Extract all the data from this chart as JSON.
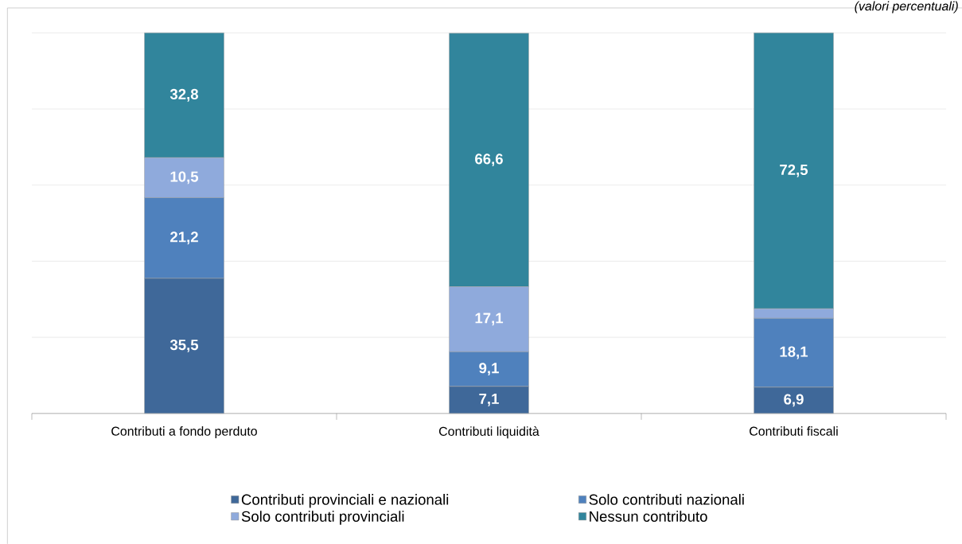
{
  "chart_data": {
    "type": "bar",
    "stacked": true,
    "annotations": [
      "(valori percentuali)"
    ],
    "categories": [
      "Contributi a fondo perduto",
      "Contributi liquidità",
      "Contributi fiscali"
    ],
    "series": [
      {
        "name": "Contributi provinciali e nazionali",
        "color": "#3f6899",
        "values": [
          35.5,
          7.1,
          6.9
        ],
        "value_labels": [
          "35,5",
          "7,1",
          "6,9"
        ]
      },
      {
        "name": "Solo contributi nazionali",
        "color": "#4f81bd",
        "values": [
          21.2,
          9.1,
          18.1
        ],
        "value_labels": [
          "21,2",
          "9,1",
          "18,1"
        ]
      },
      {
        "name": "Solo contributi provinciali",
        "color": "#8faadc",
        "values": [
          10.5,
          17.1,
          2.5
        ],
        "value_labels": [
          "10,5",
          "17,1",
          null
        ]
      },
      {
        "name": "Nessun contributo",
        "color": "#31859c",
        "values": [
          32.8,
          66.6,
          72.5
        ],
        "value_labels": [
          "32,8",
          "66,6",
          "72,5"
        ]
      }
    ],
    "ylim": [
      0,
      100
    ],
    "yticks": [
      {
        "value": 0,
        "label": null
      },
      {
        "value": 20,
        "label": null
      },
      {
        "value": 40,
        "label": null
      },
      {
        "value": 60,
        "label": null
      },
      {
        "value": 80,
        "label": null
      },
      {
        "value": 100,
        "label": null
      }
    ],
    "tick_labels": "x",
    "grid": "y",
    "legend": "bottom"
  }
}
